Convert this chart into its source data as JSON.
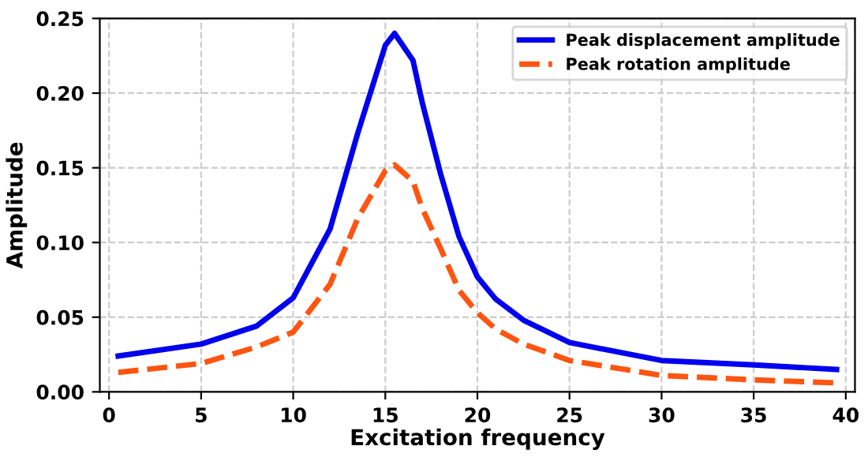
{
  "chart_data": {
    "type": "line",
    "xlabel": "Excitation frequency",
    "ylabel": "Amplitude",
    "xlim": [
      -0.5,
      40.5
    ],
    "ylim": [
      0,
      0.25
    ],
    "xticks": [
      0,
      5,
      10,
      15,
      20,
      25,
      30,
      35,
      40
    ],
    "yticks": [
      {
        "value": 0,
        "label": "0.00"
      },
      {
        "value": 0.05,
        "label": "0.05"
      },
      {
        "value": 0.1,
        "label": "0.10"
      },
      {
        "value": 0.15,
        "label": "0.15"
      },
      {
        "value": 0.2,
        "label": "0.20"
      },
      {
        "value": 0.25,
        "label": "0.25"
      }
    ],
    "grid": true,
    "legend": "top right",
    "series": [
      {
        "name": "Peak displacement amplitude",
        "color": "#0000ee",
        "line_style": "solid",
        "x": [
          0.5,
          5,
          8,
          10,
          12,
          13.5,
          15,
          15.5,
          16.5,
          17,
          18,
          19,
          20,
          21,
          22.5,
          25,
          30,
          35,
          39.5
        ],
        "values": [
          0.024,
          0.032,
          0.044,
          0.063,
          0.109,
          0.173,
          0.232,
          0.24,
          0.222,
          0.194,
          0.146,
          0.104,
          0.077,
          0.062,
          0.048,
          0.033,
          0.021,
          0.018,
          0.015
        ]
      },
      {
        "name": "Peak rotation amplitude",
        "color": "#ff5511",
        "line_style": "dashed",
        "x": [
          0.5,
          5,
          8,
          10,
          12,
          13.5,
          15,
          15.5,
          16.5,
          17,
          18,
          19,
          20,
          21,
          22.5,
          25,
          30,
          35,
          39.5
        ],
        "values": [
          0.013,
          0.019,
          0.03,
          0.04,
          0.072,
          0.116,
          0.148,
          0.152,
          0.141,
          0.123,
          0.096,
          0.068,
          0.053,
          0.042,
          0.032,
          0.021,
          0.011,
          0.008,
          0.006
        ]
      }
    ]
  }
}
